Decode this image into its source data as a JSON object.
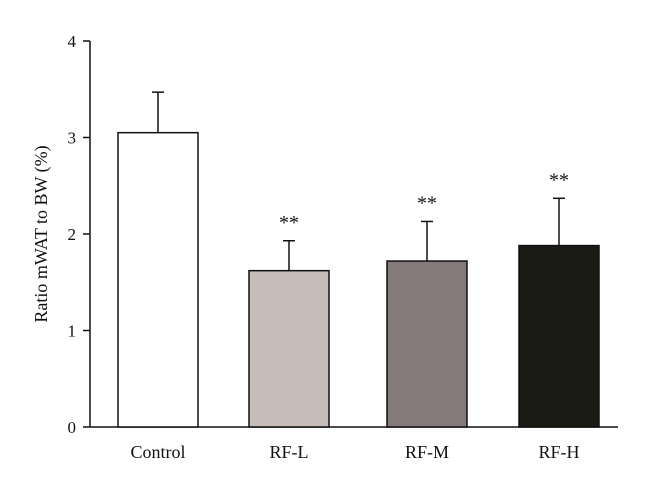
{
  "chart_data": {
    "type": "bar",
    "title": "",
    "xlabel": "",
    "ylabel": "Ratio mWAT to BW (%)",
    "ylim": [
      0,
      4
    ],
    "yticks": [
      0,
      1,
      2,
      3,
      4
    ],
    "ytick_labels": [
      "0",
      "1",
      "2",
      "3",
      "4"
    ],
    "grid": false,
    "legend": "none",
    "categories": [
      "Control",
      "RF-L",
      "RF-M",
      "RF-H"
    ],
    "values": [
      3.05,
      1.62,
      1.72,
      1.88
    ],
    "error_upper": [
      0.42,
      0.31,
      0.41,
      0.49
    ],
    "significance": [
      "",
      "**",
      "**",
      "**"
    ],
    "bar_colors": [
      "#ffffff",
      "#c8bdb8",
      "#857b7a",
      "#1b1b16"
    ]
  }
}
